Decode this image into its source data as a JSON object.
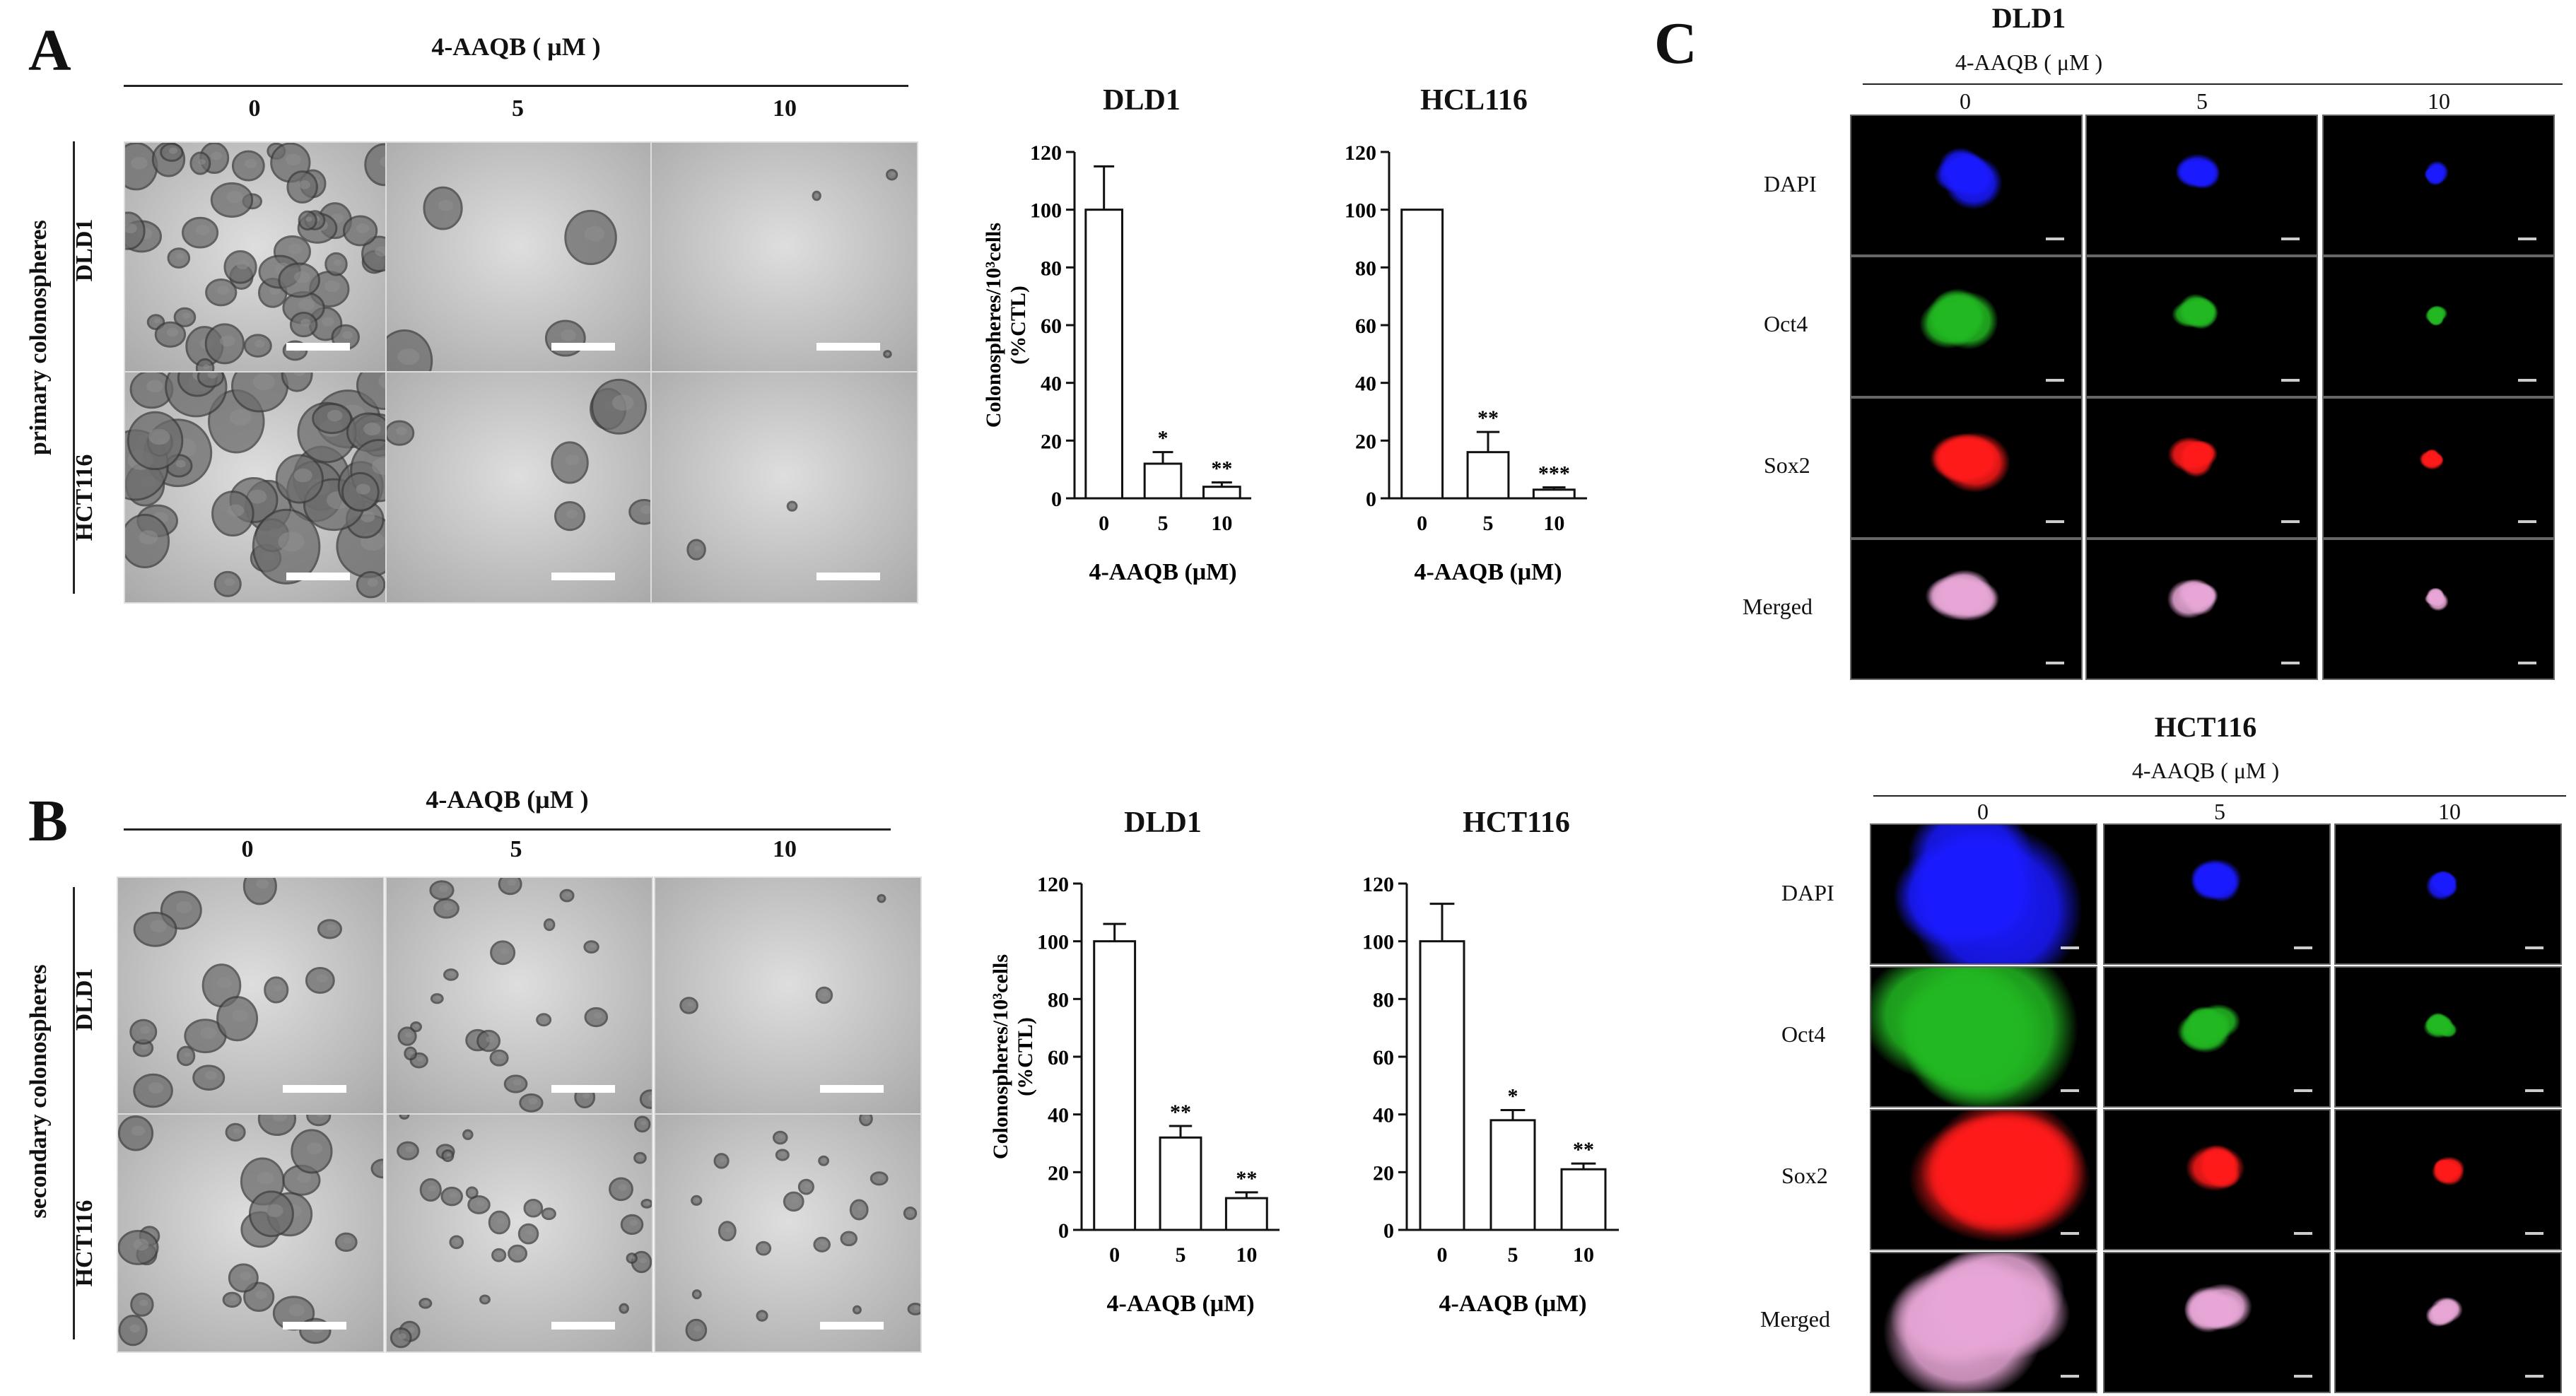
{
  "panels": {
    "A": {
      "letter": "A",
      "treatment_header": "4-AAQB ( μM )",
      "concentrations": [
        "0",
        "5",
        "10"
      ],
      "side_label": "primary colonospheres",
      "rows": [
        "DLD1",
        "HCT116"
      ]
    },
    "B": {
      "letter": "B",
      "treatment_header": "4-AAQB (μM )",
      "concentrations": [
        "0",
        "5",
        "10"
      ],
      "side_label": "secondary colonospheres",
      "rows": [
        "DLD1",
        "HCT116"
      ]
    },
    "C": {
      "letter": "C",
      "blocks": [
        {
          "title": "DLD1",
          "treatment_header": "4-AAQB ( μM )",
          "concentrations": [
            "0",
            "5",
            "10"
          ],
          "rows": [
            "DAPI",
            "Oct4",
            "Sox2",
            "Merged"
          ]
        },
        {
          "title": "HCT116",
          "treatment_header": "4-AAQB ( μM )",
          "concentrations": [
            "0",
            "5",
            "10"
          ],
          "rows": [
            "DAPI",
            "Oct4",
            "Sox2",
            "Merged"
          ]
        }
      ]
    }
  },
  "chart_data": [
    {
      "type": "bar",
      "title": "DLD1",
      "categories": [
        "0",
        "5",
        "10"
      ],
      "values": [
        100,
        12,
        4
      ],
      "errors": [
        15,
        4,
        1.5
      ],
      "significance": [
        "",
        "*",
        "**"
      ],
      "xlabel": "4-AAQB (μM)",
      "ylabel": "Colonospheres/10³cells (%CTL)",
      "ylim": [
        0,
        120
      ],
      "yticks": [
        "0",
        "20",
        "40",
        "60",
        "80",
        "100",
        "120"
      ]
    },
    {
      "type": "bar",
      "title": "HCL116",
      "categories": [
        "0",
        "5",
        "10"
      ],
      "values": [
        100,
        16,
        3
      ],
      "errors": [
        0,
        7,
        0.8
      ],
      "significance": [
        "",
        "**",
        "***"
      ],
      "xlabel": "4-AAQB (μM)",
      "ylabel": "",
      "ylim": [
        0,
        120
      ],
      "yticks": [
        "0",
        "20",
        "40",
        "60",
        "80",
        "100",
        "120"
      ]
    },
    {
      "type": "bar",
      "title": "DLD1",
      "categories": [
        "0",
        "5",
        "10"
      ],
      "values": [
        100,
        32,
        11
      ],
      "errors": [
        6,
        4,
        2
      ],
      "significance": [
        "",
        "**",
        "**"
      ],
      "xlabel": "4-AAQB (μM)",
      "ylabel": "Colonospheres/10³cells (%CTL)",
      "ylim": [
        0,
        120
      ],
      "yticks": [
        "0",
        "20",
        "40",
        "60",
        "80",
        "100",
        "120"
      ]
    },
    {
      "type": "bar",
      "title": "HCT116",
      "categories": [
        "0",
        "5",
        "10"
      ],
      "values": [
        100,
        38,
        21
      ],
      "errors": [
        13,
        3.5,
        2
      ],
      "significance": [
        "",
        "*",
        "**"
      ],
      "xlabel": "4-AAQB (μM)",
      "ylabel": "",
      "ylim": [
        0,
        120
      ],
      "yticks": [
        "0",
        "20",
        "40",
        "60",
        "80",
        "100",
        "120"
      ]
    }
  ],
  "colors": {
    "dapi": "#1a1aff",
    "oct4": "#22b822",
    "sox2": "#ff1a1a",
    "merged": "#e7a6d6",
    "micro_bg": "#c9c9c9",
    "micro_cell": "#5a5a5a"
  }
}
